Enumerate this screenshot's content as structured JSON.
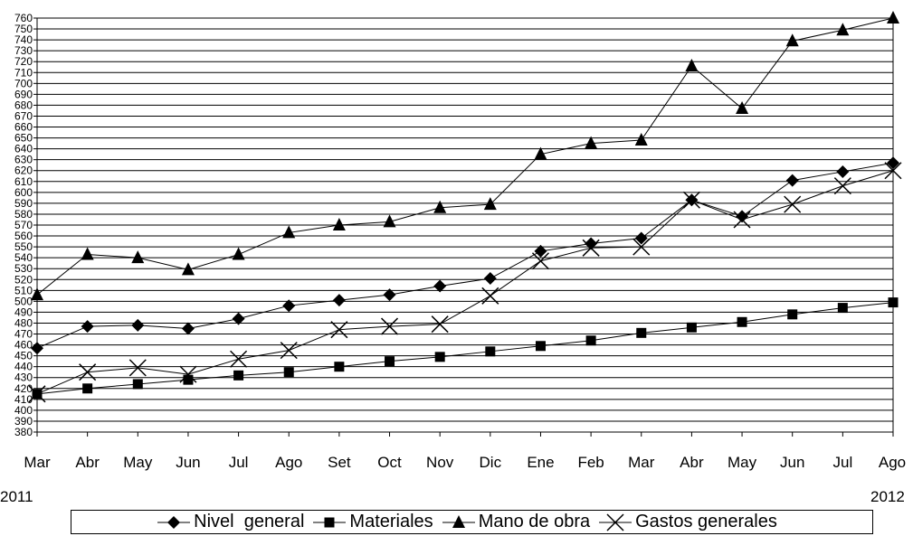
{
  "chart_data": {
    "type": "line",
    "categories": [
      "Mar",
      "Abr",
      "May",
      "Jun",
      "Jul",
      "Ago",
      "Set",
      "Oct",
      "Nov",
      "Dic",
      "Ene",
      "Feb",
      "Mar",
      "Abr",
      "May",
      "Jun",
      "Jul",
      "Ago"
    ],
    "year_start": "2011",
    "year_end": "2012",
    "ylim": [
      380,
      760
    ],
    "ytick_step": 10,
    "grid": true,
    "legend_position": "bottom",
    "series": [
      {
        "name": "Nivel  general",
        "marker": "diamond",
        "values": [
          457,
          477,
          478,
          475,
          484,
          496,
          501,
          506,
          514,
          521,
          546,
          553,
          558,
          593,
          578,
          611,
          619,
          627
        ]
      },
      {
        "name": "Materiales",
        "marker": "square",
        "values": [
          415,
          420,
          424,
          428,
          432,
          435,
          440,
          445,
          449,
          454,
          459,
          464,
          471,
          476,
          481,
          488,
          494,
          499
        ]
      },
      {
        "name": "Mano de obra",
        "marker": "triangle",
        "values": [
          506,
          543,
          540,
          529,
          543,
          563,
          570,
          573,
          586,
          589,
          635,
          645,
          648,
          716,
          677,
          739,
          749,
          760
        ]
      },
      {
        "name": "Gastos generales",
        "marker": "x",
        "values": [
          415,
          435,
          439,
          433,
          447,
          455,
          474,
          477,
          479,
          505,
          537,
          549,
          550,
          593,
          575,
          589,
          606,
          620
        ]
      }
    ]
  }
}
